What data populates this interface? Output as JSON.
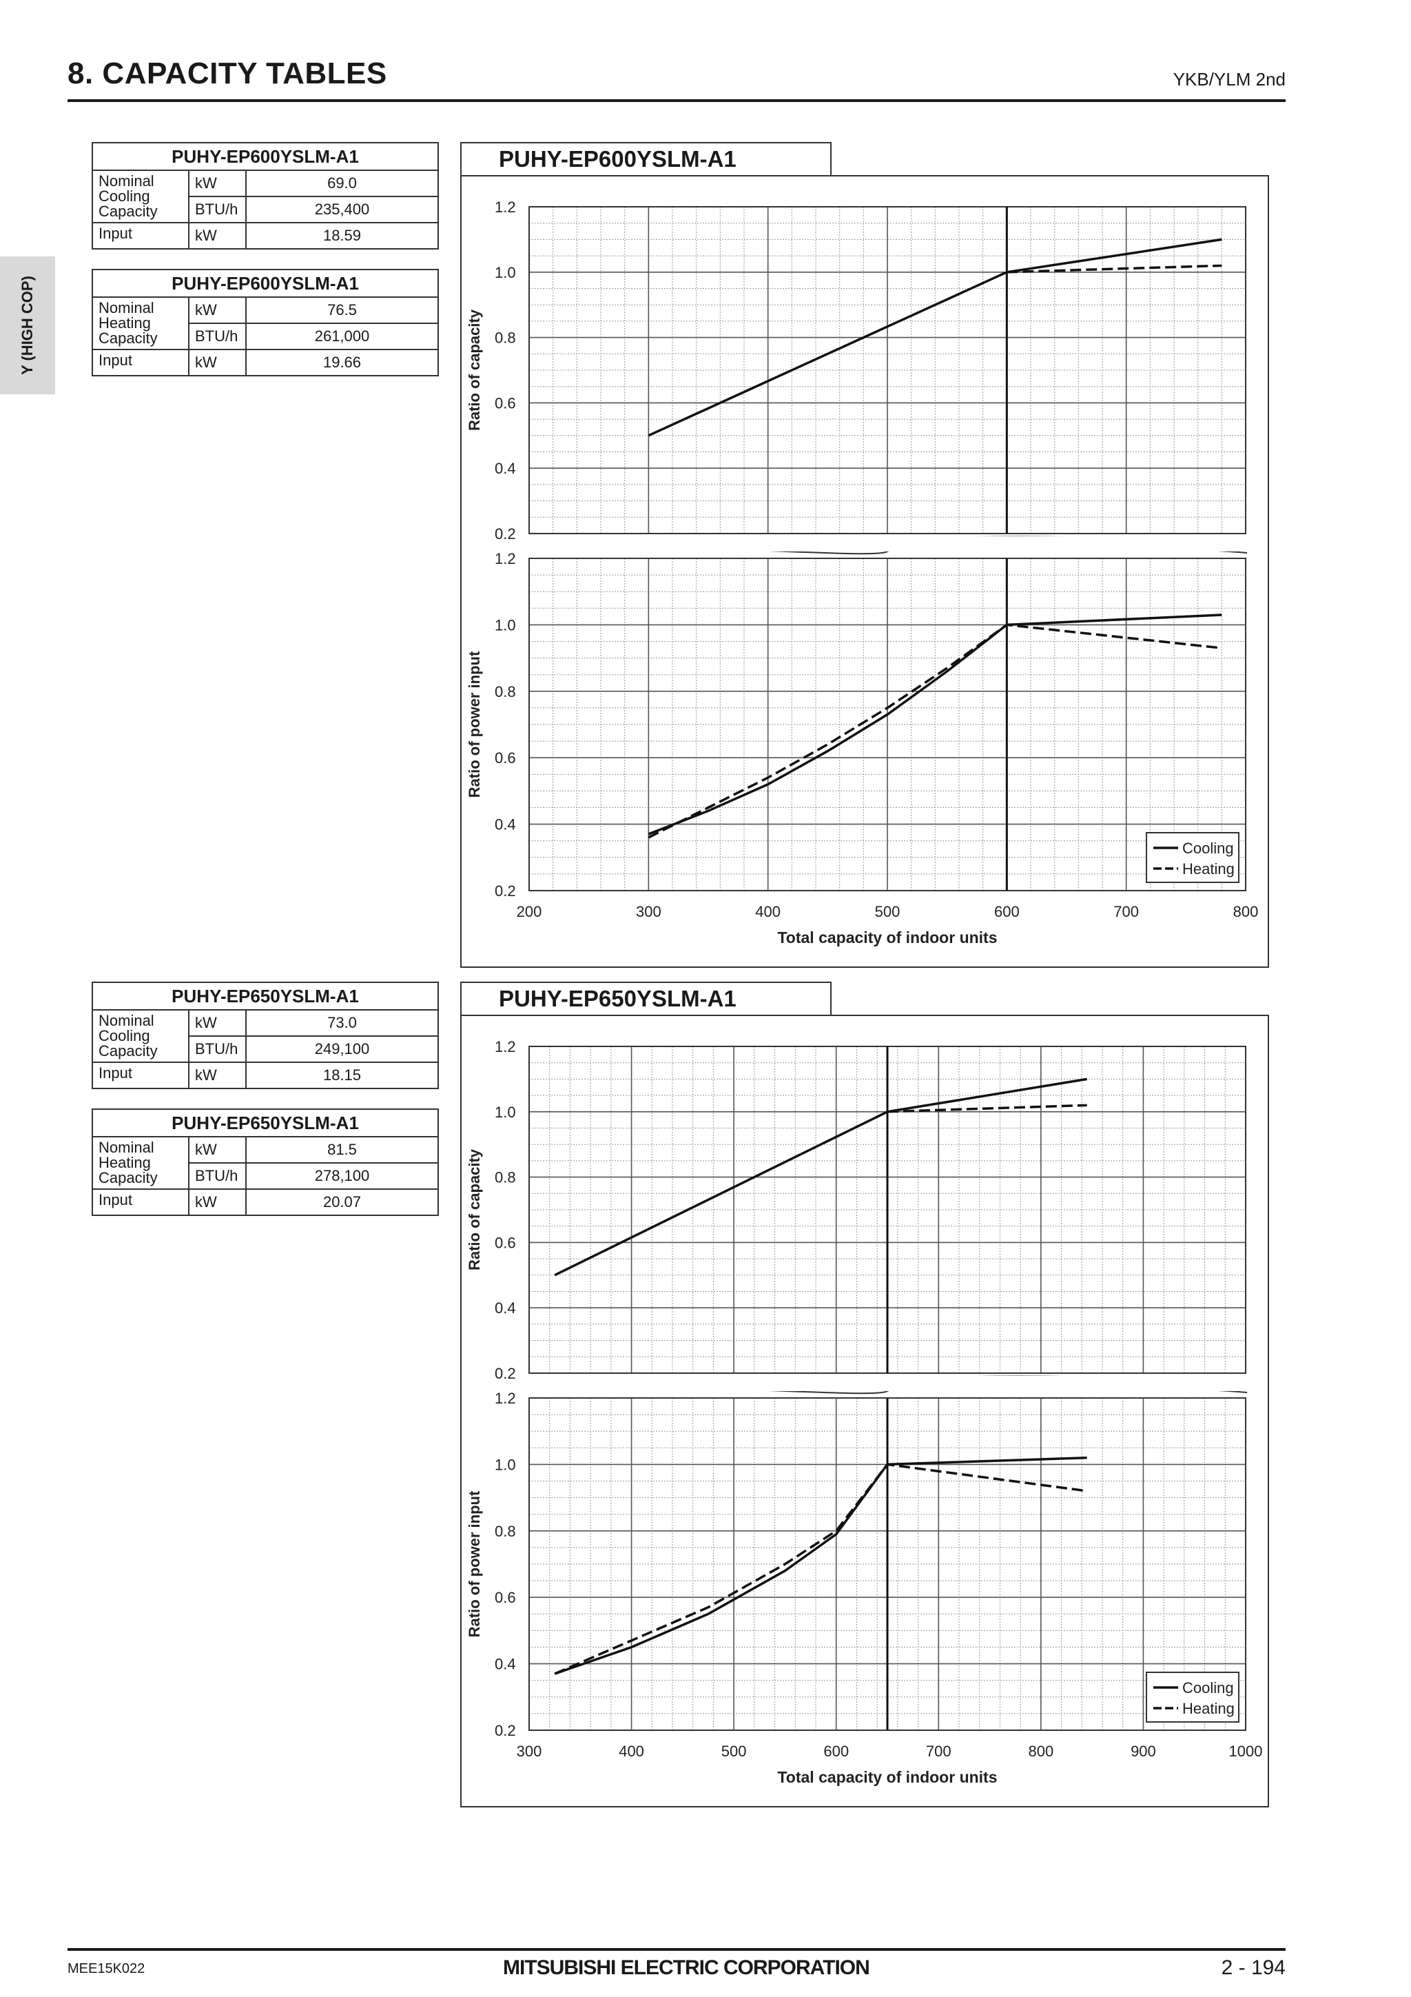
{
  "header": {
    "title": "8. CAPACITY TABLES",
    "subtitle": "YKB/YLM 2nd"
  },
  "side_tab": {
    "label": "Y (HIGH COP)"
  },
  "tables": [
    {
      "model": "PUHY-EP600YSLM-A1",
      "rows": [
        {
          "label": "Nominal Cooling Capacity",
          "unit": "kW",
          "value": "69.0"
        },
        {
          "label": "",
          "unit": "BTU/h",
          "value": "235,400"
        },
        {
          "label": "Input",
          "unit": "kW",
          "value": "18.59"
        }
      ]
    },
    {
      "model": "PUHY-EP600YSLM-A1",
      "rows": [
        {
          "label": "Nominal Heating Capacity",
          "unit": "kW",
          "value": "76.5"
        },
        {
          "label": "",
          "unit": "BTU/h",
          "value": "261,000"
        },
        {
          "label": "Input",
          "unit": "kW",
          "value": "19.66"
        }
      ]
    },
    {
      "model": "PUHY-EP650YSLM-A1",
      "rows": [
        {
          "label": "Nominal Cooling Capacity",
          "unit": "kW",
          "value": "73.0"
        },
        {
          "label": "",
          "unit": "BTU/h",
          "value": "249,100"
        },
        {
          "label": "Input",
          "unit": "kW",
          "value": "18.15"
        }
      ]
    },
    {
      "model": "PUHY-EP650YSLM-A1",
      "rows": [
        {
          "label": "Nominal Heating Capacity",
          "unit": "kW",
          "value": "81.5"
        },
        {
          "label": "",
          "unit": "BTU/h",
          "value": "278,100"
        },
        {
          "label": "Input",
          "unit": "kW",
          "value": "20.07"
        }
      ]
    }
  ],
  "chart_data": [
    {
      "type": "line",
      "title": "PUHY-EP600YSLM-A1",
      "xlabel": "Total capacity of indoor units",
      "xlim": [
        200,
        800
      ],
      "xticks": [
        200,
        300,
        400,
        500,
        600,
        700,
        800
      ],
      "xtick_labels": [
        "200",
        "300",
        "400",
        "500",
        "600",
        "700",
        "800"
      ],
      "nominal_x": 600,
      "legend": [
        "Cooling",
        "Heating"
      ],
      "panels": [
        {
          "ylabel": "Ratio of capacity",
          "ylim": [
            0.2,
            1.2
          ],
          "yticks": [
            1.2,
            1.0,
            0.8,
            0.6,
            0.4,
            0.2
          ],
          "ytick_labels": [
            "1.2",
            "1.0",
            "0.8",
            "0.6",
            "0.4",
            "0.2"
          ],
          "series": [
            {
              "name": "Cooling",
              "style": "solid",
              "points": [
                [
                  300,
                  0.5
                ],
                [
                  600,
                  1.0
                ],
                [
                  780,
                  1.1
                ]
              ]
            },
            {
              "name": "Heating",
              "style": "dashed",
              "points": [
                [
                  600,
                  1.0
                ],
                [
                  780,
                  1.02
                ]
              ]
            }
          ]
        },
        {
          "ylabel": "Ratio of power input",
          "ylim": [
            0.2,
            1.2
          ],
          "yticks": [
            1.2,
            1.0,
            0.8,
            0.6,
            0.4,
            0.2
          ],
          "ytick_labels": [
            "1.2",
            "1.0",
            "0.8",
            "0.6",
            "0.4",
            "0.2"
          ],
          "series": [
            {
              "name": "Cooling",
              "style": "solid",
              "points": [
                [
                  300,
                  0.37
                ],
                [
                  350,
                  0.44
                ],
                [
                  400,
                  0.52
                ],
                [
                  450,
                  0.62
                ],
                [
                  500,
                  0.73
                ],
                [
                  550,
                  0.86
                ],
                [
                  600,
                  1.0
                ],
                [
                  780,
                  1.03
                ]
              ]
            },
            {
              "name": "Heating",
              "style": "dashed",
              "points": [
                [
                  300,
                  0.36
                ],
                [
                  350,
                  0.45
                ],
                [
                  400,
                  0.54
                ],
                [
                  450,
                  0.64
                ],
                [
                  500,
                  0.75
                ],
                [
                  550,
                  0.87
                ],
                [
                  600,
                  1.0
                ],
                [
                  780,
                  0.93
                ]
              ]
            }
          ]
        }
      ]
    },
    {
      "type": "line",
      "title": "PUHY-EP650YSLM-A1",
      "xlabel": "Total capacity of indoor units",
      "xlim": [
        300,
        1000
      ],
      "xticks": [
        300,
        400,
        500,
        600,
        700,
        800,
        900,
        1000
      ],
      "xtick_labels": [
        "300",
        "400",
        "500",
        "600",
        "700",
        "800",
        "900",
        "1000"
      ],
      "nominal_x": 650,
      "legend": [
        "Cooling",
        "Heating"
      ],
      "panels": [
        {
          "ylabel": "Ratio of capacity",
          "ylim": [
            0.2,
            1.2
          ],
          "yticks": [
            1.2,
            1.0,
            0.8,
            0.6,
            0.4,
            0.2
          ],
          "ytick_labels": [
            "1.2",
            "1.0",
            "0.8",
            "0.6",
            "0.4",
            "0.2"
          ],
          "series": [
            {
              "name": "Cooling",
              "style": "solid",
              "points": [
                [
                  325,
                  0.5
                ],
                [
                  650,
                  1.0
                ],
                [
                  845,
                  1.1
                ]
              ]
            },
            {
              "name": "Heating",
              "style": "dashed",
              "points": [
                [
                  650,
                  1.0
                ],
                [
                  845,
                  1.02
                ]
              ]
            }
          ]
        },
        {
          "ylabel": "Ratio of power input",
          "ylim": [
            0.2,
            1.2
          ],
          "yticks": [
            1.2,
            1.0,
            0.8,
            0.6,
            0.4,
            0.2
          ],
          "ytick_labels": [
            "1.2",
            "1.0",
            "0.8",
            "0.6",
            "0.4",
            "0.2"
          ],
          "series": [
            {
              "name": "Cooling",
              "style": "solid",
              "points": [
                [
                  325,
                  0.37
                ],
                [
                  400,
                  0.45
                ],
                [
                  475,
                  0.55
                ],
                [
                  550,
                  0.68
                ],
                [
                  600,
                  0.79
                ],
                [
                  650,
                  1.0
                ],
                [
                  845,
                  1.02
                ]
              ]
            },
            {
              "name": "Heating",
              "style": "dashed",
              "points": [
                [
                  325,
                  0.37
                ],
                [
                  400,
                  0.47
                ],
                [
                  475,
                  0.57
                ],
                [
                  550,
                  0.7
                ],
                [
                  600,
                  0.8
                ],
                [
                  650,
                  1.0
                ],
                [
                  845,
                  0.92
                ]
              ]
            }
          ]
        }
      ]
    }
  ],
  "footer": {
    "doc_code": "MEE15K022",
    "company": "MITSUBISHI ELECTRIC CORPORATION",
    "page": "2 - 194"
  }
}
